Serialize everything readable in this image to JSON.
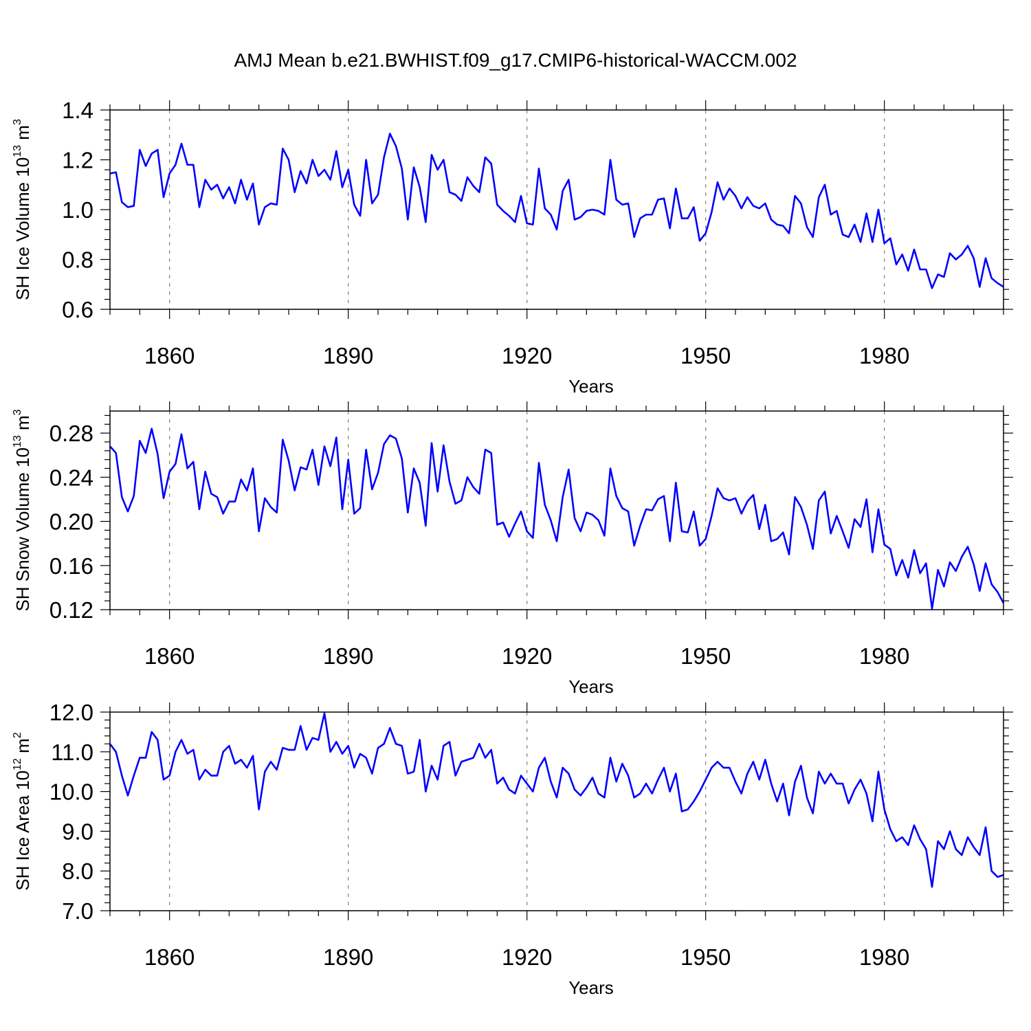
{
  "title": "AMJ Mean b.e21.BWHIST.f09_g17.CMIP6-historical-WACCM.002",
  "colors": {
    "series": "#0000ff",
    "axis": "#000000",
    "grid": "#7f7f7f"
  },
  "chart_data": [
    {
      "type": "line",
      "ylabel": {
        "main": "SH Ice Volume 10",
        "exp": "13",
        "unit": " m",
        "unit_exp": "3"
      },
      "xlabel": "Years",
      "xlim": [
        1850,
        2000
      ],
      "ylim": [
        0.6,
        1.4
      ],
      "y_ticks": [
        "0.6",
        "0.8",
        "1.0",
        "1.2",
        "1.4"
      ],
      "x_ticks": [
        "1860",
        "1890",
        "1920",
        "1950",
        "1980"
      ],
      "series": [
        {
          "name": "SH Ice Volume",
          "start_year": 1850,
          "values": [
            1.145,
            1.15,
            1.03,
            1.01,
            1.015,
            1.24,
            1.175,
            1.225,
            1.24,
            1.05,
            1.145,
            1.18,
            1.265,
            1.18,
            1.18,
            1.01,
            1.12,
            1.08,
            1.1,
            1.045,
            1.09,
            1.025,
            1.12,
            1.04,
            1.105,
            0.94,
            1.01,
            1.025,
            1.02,
            1.245,
            1.2,
            1.07,
            1.155,
            1.105,
            1.2,
            1.135,
            1.16,
            1.12,
            1.235,
            1.09,
            1.16,
            1.02,
            0.975,
            1.2,
            1.025,
            1.06,
            1.21,
            1.305,
            1.255,
            1.165,
            0.96,
            1.17,
            1.09,
            0.95,
            1.22,
            1.16,
            1.2,
            1.07,
            1.06,
            1.035,
            1.13,
            1.095,
            1.07,
            1.21,
            1.185,
            1.02,
            0.995,
            0.975,
            0.95,
            1.055,
            0.945,
            0.94,
            1.165,
            1.005,
            0.98,
            0.92,
            1.075,
            1.12,
            0.96,
            0.97,
            0.995,
            1.0,
            0.995,
            0.98,
            1.2,
            1.04,
            1.02,
            1.025,
            0.89,
            0.965,
            0.98,
            0.98,
            1.04,
            1.045,
            0.925,
            1.085,
            0.965,
            0.965,
            1.01,
            0.875,
            0.905,
            0.99,
            1.11,
            1.04,
            1.085,
            1.055,
            1.005,
            1.05,
            1.015,
            1.005,
            1.025,
            0.96,
            0.94,
            0.935,
            0.905,
            1.055,
            1.025,
            0.93,
            0.89,
            1.05,
            1.1,
            0.98,
            0.995,
            0.9,
            0.89,
            0.94,
            0.87,
            0.985,
            0.87,
            1.0,
            0.865,
            0.885,
            0.78,
            0.82,
            0.755,
            0.84,
            0.76,
            0.76,
            0.685,
            0.74,
            0.73,
            0.825,
            0.8,
            0.82,
            0.855,
            0.805,
            0.69,
            0.805,
            0.725,
            0.705,
            0.69
          ]
        }
      ]
    },
    {
      "type": "line",
      "ylabel": {
        "main": "SH Snow Volume 10",
        "exp": "13",
        "unit": " m",
        "unit_exp": "3"
      },
      "xlabel": "Years",
      "xlim": [
        1850,
        2000
      ],
      "ylim": [
        0.12,
        0.3
      ],
      "y_ticks": [
        "0.12",
        "0.16",
        "0.20",
        "0.24",
        "0.28"
      ],
      "x_ticks": [
        "1860",
        "1890",
        "1920",
        "1950",
        "1980"
      ],
      "series": [
        {
          "name": "SH Snow Volume",
          "start_year": 1850,
          "values": [
            0.268,
            0.262,
            0.222,
            0.209,
            0.223,
            0.273,
            0.262,
            0.284,
            0.261,
            0.221,
            0.245,
            0.252,
            0.279,
            0.248,
            0.254,
            0.211,
            0.245,
            0.225,
            0.222,
            0.207,
            0.218,
            0.218,
            0.238,
            0.228,
            0.248,
            0.191,
            0.221,
            0.213,
            0.208,
            0.274,
            0.255,
            0.228,
            0.249,
            0.247,
            0.265,
            0.233,
            0.268,
            0.25,
            0.276,
            0.211,
            0.256,
            0.207,
            0.212,
            0.265,
            0.229,
            0.244,
            0.27,
            0.278,
            0.275,
            0.257,
            0.208,
            0.248,
            0.235,
            0.196,
            0.271,
            0.227,
            0.269,
            0.236,
            0.216,
            0.219,
            0.24,
            0.231,
            0.225,
            0.265,
            0.262,
            0.197,
            0.199,
            0.186,
            0.198,
            0.209,
            0.191,
            0.185,
            0.253,
            0.215,
            0.201,
            0.182,
            0.222,
            0.247,
            0.203,
            0.191,
            0.208,
            0.206,
            0.201,
            0.187,
            0.248,
            0.223,
            0.212,
            0.209,
            0.178,
            0.196,
            0.211,
            0.21,
            0.22,
            0.223,
            0.182,
            0.235,
            0.191,
            0.19,
            0.209,
            0.178,
            0.184,
            0.205,
            0.23,
            0.221,
            0.219,
            0.221,
            0.207,
            0.218,
            0.224,
            0.193,
            0.215,
            0.182,
            0.184,
            0.19,
            0.17,
            0.222,
            0.213,
            0.197,
            0.175,
            0.219,
            0.227,
            0.189,
            0.205,
            0.191,
            0.176,
            0.202,
            0.195,
            0.22,
            0.172,
            0.211,
            0.179,
            0.175,
            0.151,
            0.165,
            0.149,
            0.174,
            0.153,
            0.162,
            0.121,
            0.156,
            0.141,
            0.163,
            0.155,
            0.168,
            0.177,
            0.161,
            0.137,
            0.162,
            0.143,
            0.136,
            0.126
          ]
        }
      ]
    },
    {
      "type": "line",
      "ylabel": {
        "main": "SH Ice Area 10",
        "exp": "12",
        "unit": " m",
        "unit_exp": "2"
      },
      "xlabel": "Years",
      "xlim": [
        1850,
        2000
      ],
      "ylim": [
        7.0,
        12.0
      ],
      "y_ticks": [
        "7.0",
        "8.0",
        "9.0",
        "10.0",
        "11.0",
        "12.0"
      ],
      "x_ticks": [
        "1860",
        "1890",
        "1920",
        "1950",
        "1980"
      ],
      "series": [
        {
          "name": "SH Ice Area",
          "start_year": 1850,
          "values": [
            11.2,
            11.0,
            10.4,
            9.9,
            10.4,
            10.85,
            10.85,
            11.5,
            11.3,
            10.3,
            10.4,
            11.0,
            11.3,
            10.95,
            11.05,
            10.3,
            10.55,
            10.4,
            10.4,
            11.0,
            11.15,
            10.7,
            10.8,
            10.6,
            10.9,
            9.55,
            10.5,
            10.75,
            10.55,
            11.1,
            11.05,
            11.05,
            11.65,
            11.05,
            11.35,
            11.3,
            11.97,
            11.0,
            11.25,
            10.95,
            11.15,
            10.6,
            10.95,
            10.85,
            10.45,
            11.1,
            11.2,
            11.6,
            11.2,
            11.15,
            10.45,
            10.5,
            11.3,
            10.0,
            10.65,
            10.3,
            11.15,
            11.25,
            10.4,
            10.75,
            10.8,
            10.85,
            11.2,
            10.85,
            11.05,
            10.2,
            10.35,
            10.05,
            9.95,
            10.4,
            10.2,
            10.0,
            10.6,
            10.85,
            10.25,
            9.85,
            10.6,
            10.45,
            10.05,
            9.9,
            10.1,
            10.35,
            9.95,
            9.85,
            10.85,
            10.25,
            10.7,
            10.4,
            9.85,
            9.95,
            10.2,
            9.95,
            10.3,
            10.6,
            10.0,
            10.45,
            9.5,
            9.55,
            9.75,
            10.0,
            10.3,
            10.6,
            10.75,
            10.6,
            10.6,
            10.25,
            9.95,
            10.45,
            10.75,
            10.3,
            10.8,
            10.2,
            9.75,
            10.2,
            9.4,
            10.25,
            10.65,
            9.85,
            9.45,
            10.5,
            10.2,
            10.45,
            10.2,
            10.2,
            9.7,
            10.05,
            10.3,
            9.95,
            9.25,
            10.5,
            9.55,
            9.05,
            8.75,
            8.85,
            8.65,
            9.15,
            8.8,
            8.55,
            7.6,
            8.75,
            8.55,
            9.0,
            8.55,
            8.4,
            8.85,
            8.6,
            8.4,
            9.1,
            8.0,
            7.85,
            7.9
          ]
        }
      ]
    }
  ]
}
